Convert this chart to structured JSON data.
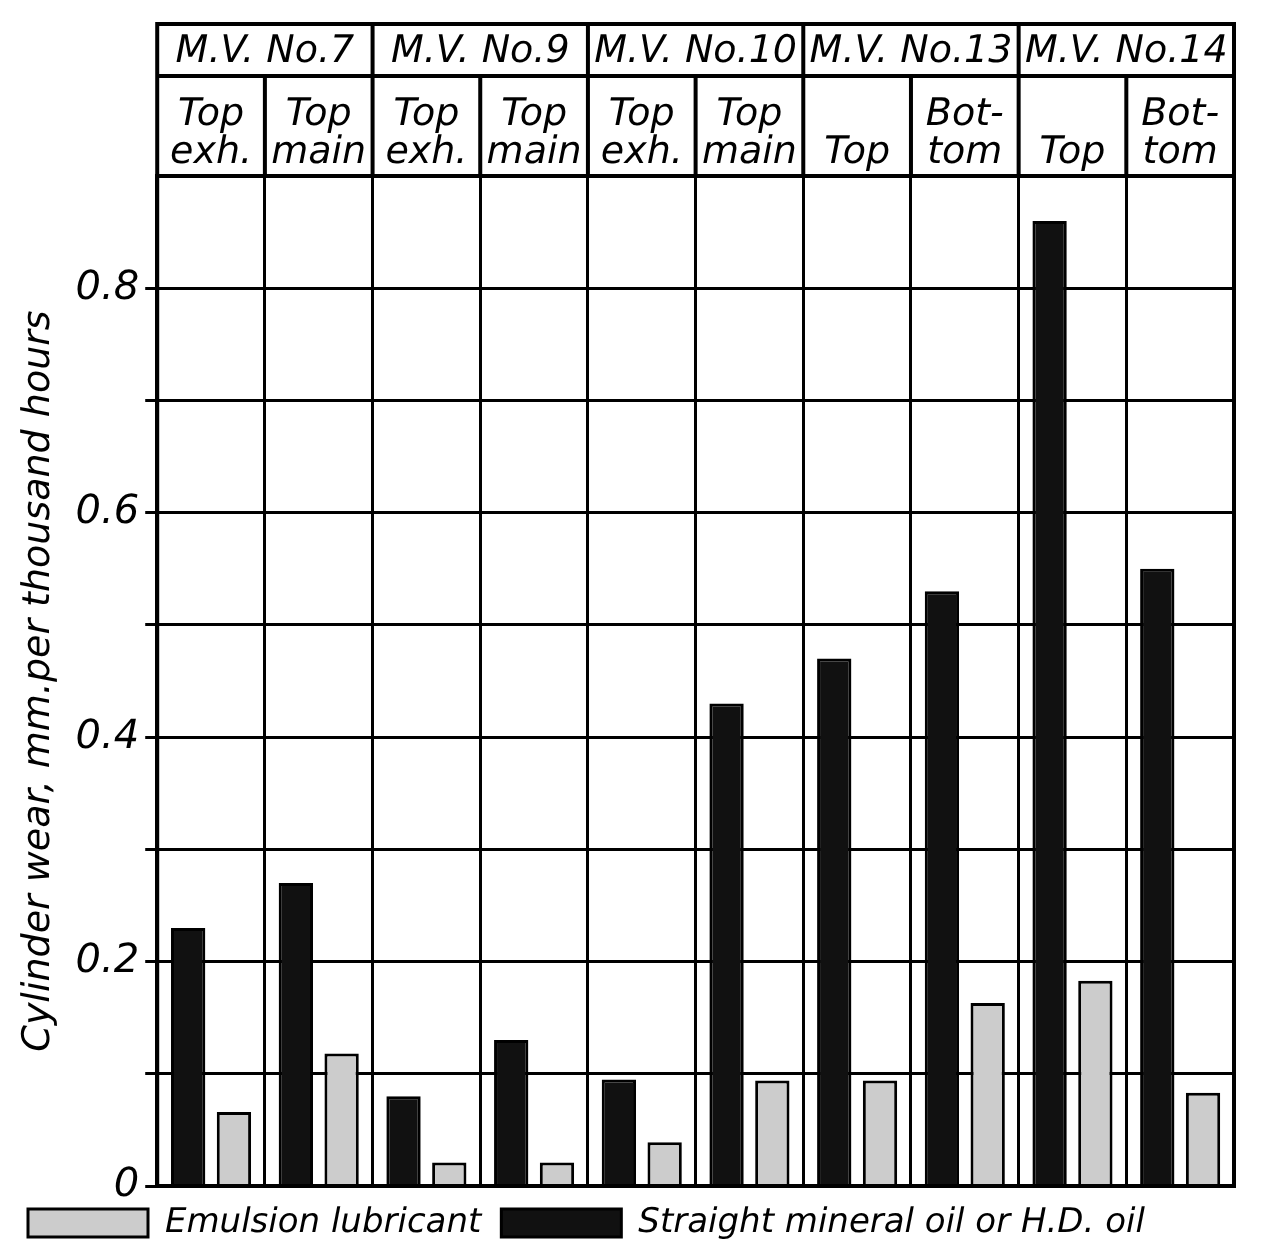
{
  "chart_data": {
    "type": "bar",
    "categories": [
      "Top exh.",
      "Top main",
      "Top exh.",
      "Top main",
      "Top exh.",
      "Top main",
      "Top",
      "Bot-tom",
      "Top",
      "Bot-tom"
    ],
    "series": [
      {
        "name": "Straight mineral oil or H.D. oil",
        "color": "#111111",
        "values": [
          0.23,
          0.27,
          0.08,
          0.13,
          0.095,
          0.43,
          0.47,
          0.53,
          0.86,
          0.55
        ]
      },
      {
        "name": "Emulsion lubricant",
        "color": "#cccccc",
        "values": [
          0.066,
          0.118,
          0.021,
          0.021,
          0.039,
          0.094,
          0.094,
          0.163,
          0.183,
          0.083
        ]
      }
    ],
    "annotations": [
      "M.V. No.7",
      "M.V. No.9",
      "M.V. No.10",
      "M.V. No.13",
      "M.V. No.14"
    ],
    "ylabel": "Cylinder wear, mm.per thousand hours",
    "ylim": [
      0,
      0.9
    ],
    "yticks": [
      0,
      {
        "value": 0.1,
        "label": null
      },
      0.2,
      {
        "value": 0.3,
        "label": null
      },
      0.4,
      {
        "value": 0.5,
        "label": null
      },
      0.6,
      {
        "value": 0.7,
        "label": null
      },
      0.8
    ],
    "grid": true,
    "legend": "bottom"
  }
}
